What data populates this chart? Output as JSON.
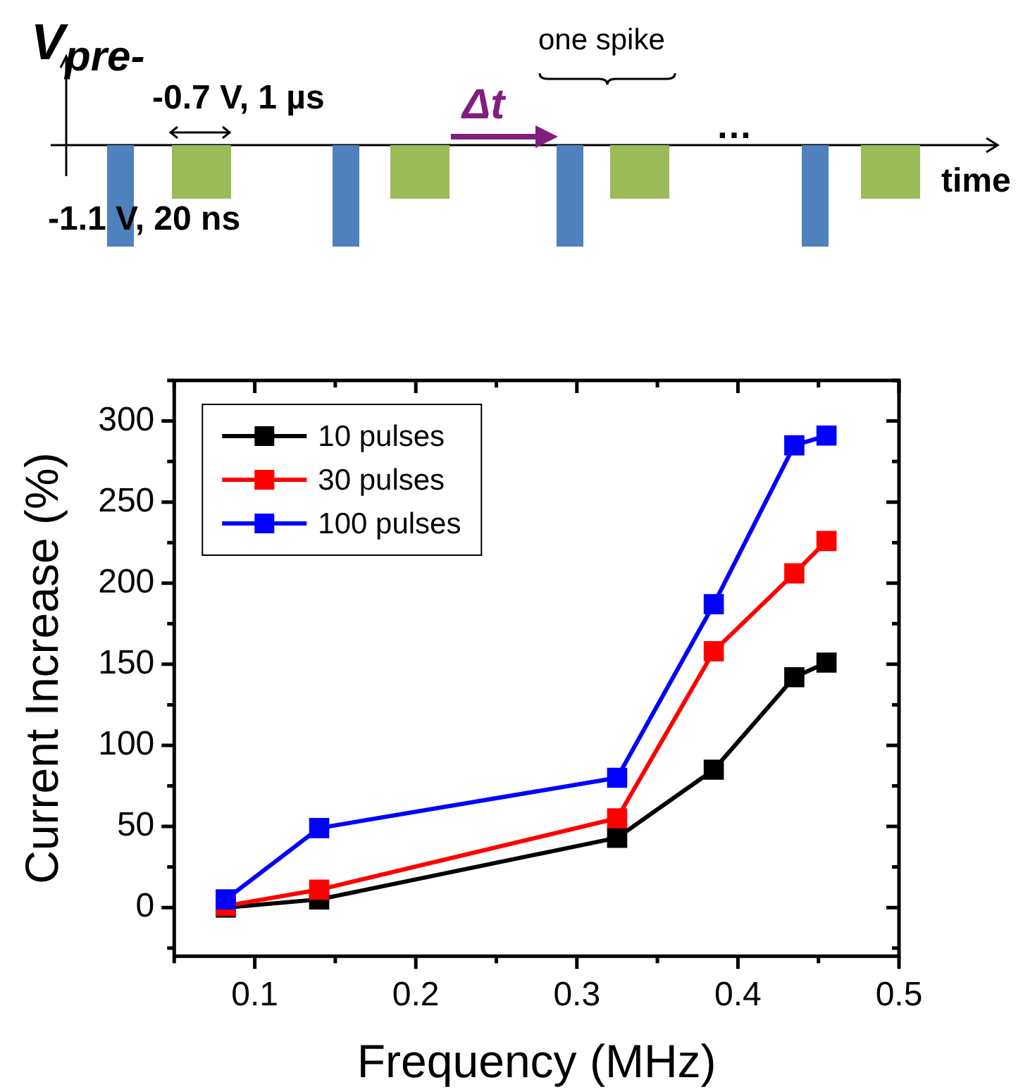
{
  "chart_data": {
    "type": "line",
    "xlabel": "Frequency (MHz)",
    "ylabel": "Current Increase (%)",
    "x": [
      0.082,
      0.14,
      0.325,
      0.385,
      0.435,
      0.455
    ],
    "series": [
      {
        "name": "10 pulses",
        "color": "#000000",
        "values": [
          0,
          5,
          43,
          85,
          142,
          151
        ]
      },
      {
        "name": "30 pulses",
        "color": "#ff0000",
        "values": [
          1,
          11,
          55,
          158,
          206,
          226
        ]
      },
      {
        "name": "100 pulses",
        "color": "#0000ff",
        "values": [
          5,
          49,
          80,
          187,
          285,
          291
        ]
      }
    ],
    "xlim": [
      0.05,
      0.5
    ],
    "xticks": [
      0.1,
      0.2,
      0.3,
      0.4,
      0.5
    ],
    "ylim": [
      -30,
      325
    ],
    "yticks": [
      0,
      50,
      100,
      150,
      200,
      250,
      300
    ],
    "legend": "top left",
    "marker": "square",
    "grid": false,
    "annotations": [
      "V$_{pre-}$",
      "-0.7 V, 1 µs",
      "-1.1 V, 20 ns",
      "Δt",
      "one spike",
      "…",
      "time"
    ]
  }
}
